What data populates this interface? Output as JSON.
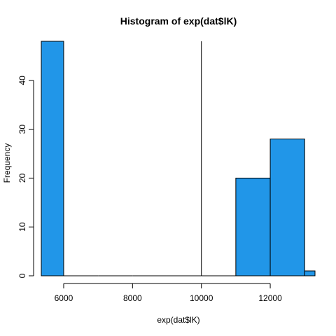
{
  "chart_data": {
    "type": "bar",
    "subtype": "histogram",
    "title": "Histogram of exp(dat$lK)",
    "xlabel": "exp(dat$lK)",
    "ylabel": "Frequency",
    "xlim": [
      5350,
      13300
    ],
    "ylim": [
      0,
      48
    ],
    "x_ticks": [
      6000,
      8000,
      10000,
      12000
    ],
    "x_tick_labels": [
      "6000",
      "8000",
      "10000",
      "12000"
    ],
    "y_ticks": [
      0,
      10,
      20,
      30,
      40
    ],
    "y_tick_labels": [
      "0",
      "10",
      "20",
      "30",
      "40"
    ],
    "bins": [
      {
        "start": 5350,
        "end": 6000,
        "count": 48
      },
      {
        "start": 6000,
        "end": 7000,
        "count": 0
      },
      {
        "start": 7000,
        "end": 8000,
        "count": 0
      },
      {
        "start": 8000,
        "end": 9000,
        "count": 0
      },
      {
        "start": 9000,
        "end": 10000,
        "count": 0
      },
      {
        "start": 10000,
        "end": 11000,
        "count": 0
      },
      {
        "start": 11000,
        "end": 12000,
        "count": 20
      },
      {
        "start": 12000,
        "end": 13000,
        "count": 28
      },
      {
        "start": 13000,
        "end": 13300,
        "count": 1
      }
    ],
    "reference_line_x": 10000,
    "bar_color": "#2196e8",
    "bar_stroke": "#000000",
    "grid": false
  }
}
